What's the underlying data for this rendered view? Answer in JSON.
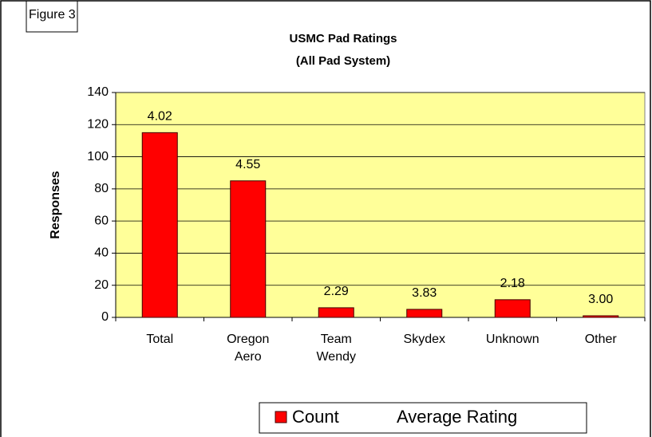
{
  "chart_data": {
    "type": "bar",
    "annotation": "Figure 3",
    "title": "USMC Pad Ratings",
    "subtitle": "(All Pad System)",
    "y_label": "Responses",
    "categories": [
      "Total",
      "Oregon Aero",
      "Team Wendy",
      "Skydex",
      "Unknown",
      "Other"
    ],
    "series": [
      {
        "name": "Count",
        "color": "#ff0000",
        "values": [
          115,
          85,
          6,
          5,
          11,
          1
        ]
      },
      {
        "name": "Average Rating",
        "values": [
          4.02,
          4.55,
          2.29,
          3.83,
          2.18,
          3
        ],
        "value_labels": [
          "4.02",
          "4.55",
          "2.29",
          "3.83",
          "2.18",
          "3.00"
        ]
      }
    ],
    "ylim": [
      0,
      140
    ],
    "yticks": [
      0,
      20,
      40,
      60,
      80,
      100,
      120,
      140
    ],
    "grid": true,
    "plot_background": "#ffff99",
    "legend": "bottom"
  }
}
